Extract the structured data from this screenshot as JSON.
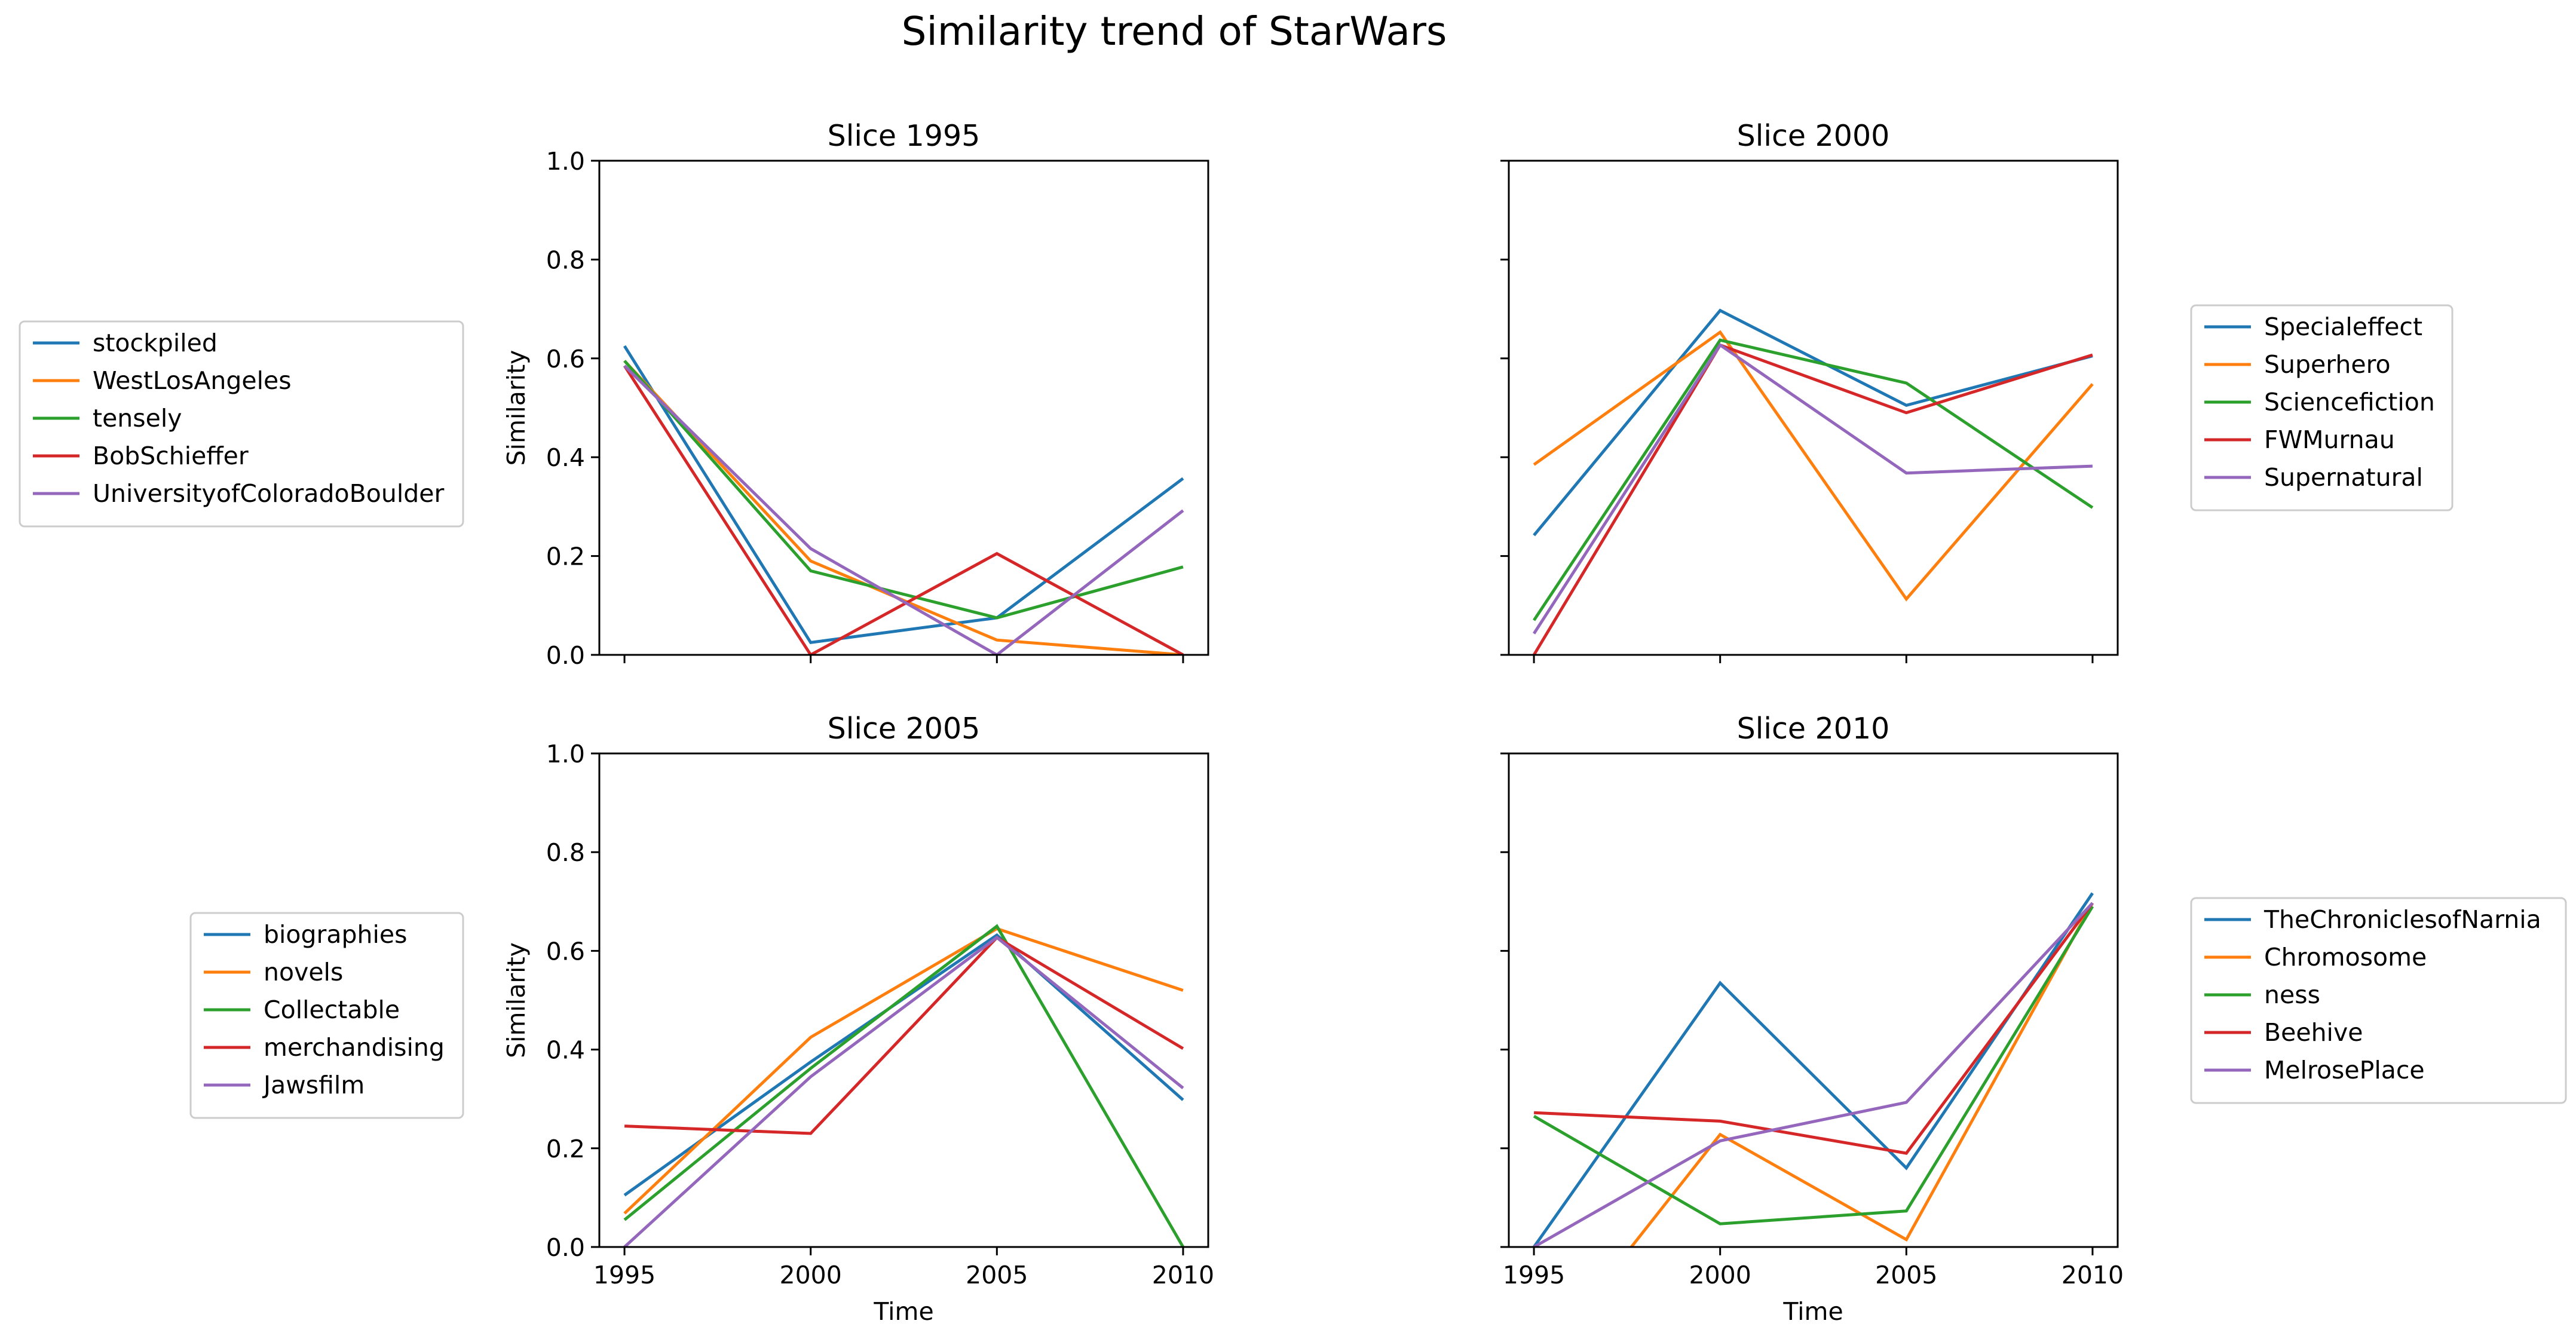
{
  "title": "Similarity trend of StarWars",
  "colors": [
    "#1f77b4",
    "#ff7f0e",
    "#2ca02c",
    "#d62728",
    "#9467bd"
  ],
  "chart_data": [
    {
      "type": "line",
      "title": "Slice 1995",
      "x": [
        1995,
        2000,
        2005,
        2010
      ],
      "xlabel": "",
      "ylabel": "Similarity",
      "ylim": [
        0,
        1
      ],
      "yticks": [
        "0.0",
        "0.2",
        "0.4",
        "0.6",
        "0.8",
        "1.0"
      ],
      "xticks": [],
      "legend": "left",
      "series": [
        {
          "name": "stockpiled",
          "values": [
            0.625,
            0.025,
            0.075,
            0.357
          ]
        },
        {
          "name": "WestLosAngeles",
          "values": [
            0.595,
            0.19,
            0.03,
            0.0
          ]
        },
        {
          "name": "tensely",
          "values": [
            0.595,
            0.17,
            0.075,
            0.178
          ]
        },
        {
          "name": "BobSchieffer",
          "values": [
            0.585,
            0.0,
            0.205,
            0.0
          ]
        },
        {
          "name": "UniversityofColoradoBoulder",
          "values": [
            0.585,
            0.215,
            0.0,
            0.292
          ]
        }
      ]
    },
    {
      "type": "line",
      "title": "Slice 2000",
      "x": [
        1995,
        2000,
        2005,
        2010
      ],
      "xlabel": "",
      "ylabel": "",
      "ylim": [
        0,
        1
      ],
      "yticks": [],
      "xticks": [],
      "legend": "right",
      "series": [
        {
          "name": "Specialeffect",
          "values": [
            0.242,
            0.697,
            0.505,
            0.605
          ]
        },
        {
          "name": "Superhero",
          "values": [
            0.385,
            0.653,
            0.113,
            0.548
          ]
        },
        {
          "name": "Sciencefiction",
          "values": [
            0.07,
            0.637,
            0.55,
            0.298
          ]
        },
        {
          "name": "FWMurnau",
          "values": [
            0.0,
            0.627,
            0.49,
            0.607
          ]
        },
        {
          "name": "Supernatural",
          "values": [
            0.043,
            0.627,
            0.368,
            0.382
          ]
        }
      ]
    },
    {
      "type": "line",
      "title": "Slice 2005",
      "x": [
        1995,
        2000,
        2005,
        2010
      ],
      "xlabel": "Time",
      "ylabel": "Similarity",
      "ylim": [
        0,
        1
      ],
      "yticks": [
        "0.0",
        "0.2",
        "0.4",
        "0.6",
        "0.8",
        "1.0"
      ],
      "xticks": [
        "1995",
        "2000",
        "2005",
        "2010"
      ],
      "legend": "left",
      "series": [
        {
          "name": "biographies",
          "values": [
            0.105,
            0.375,
            0.632,
            0.298
          ]
        },
        {
          "name": "novels",
          "values": [
            0.068,
            0.425,
            0.645,
            0.52
          ]
        },
        {
          "name": "Collectable",
          "values": [
            0.055,
            0.362,
            0.65,
            0.0
          ]
        },
        {
          "name": "merchandising",
          "values": [
            0.245,
            0.23,
            0.627,
            0.402
          ]
        },
        {
          "name": "Jawsfilm",
          "values": [
            0.0,
            0.345,
            0.627,
            0.322
          ]
        }
      ]
    },
    {
      "type": "line",
      "title": "Slice 2010",
      "x": [
        1995,
        2000,
        2005,
        2010
      ],
      "xlabel": "Time",
      "ylabel": "",
      "ylim": [
        0,
        1
      ],
      "yticks": [],
      "xticks": [
        "1995",
        "2000",
        "2005",
        "2010"
      ],
      "legend": "right",
      "series": [
        {
          "name": "TheChroniclesofNarnia",
          "values": [
            0.0,
            0.535,
            0.16,
            0.717
          ]
        },
        {
          "name": "Chromosome",
          "values": [
            -0.25,
            0.228,
            0.015,
            0.697
          ]
        },
        {
          "name": "ness",
          "values": [
            0.265,
            0.047,
            0.073,
            0.69
          ]
        },
        {
          "name": "Beehive",
          "values": [
            0.272,
            0.255,
            0.19,
            0.697
          ]
        },
        {
          "name": "MelrosePlace",
          "values": [
            0.0,
            0.215,
            0.293,
            0.697
          ]
        }
      ]
    }
  ]
}
